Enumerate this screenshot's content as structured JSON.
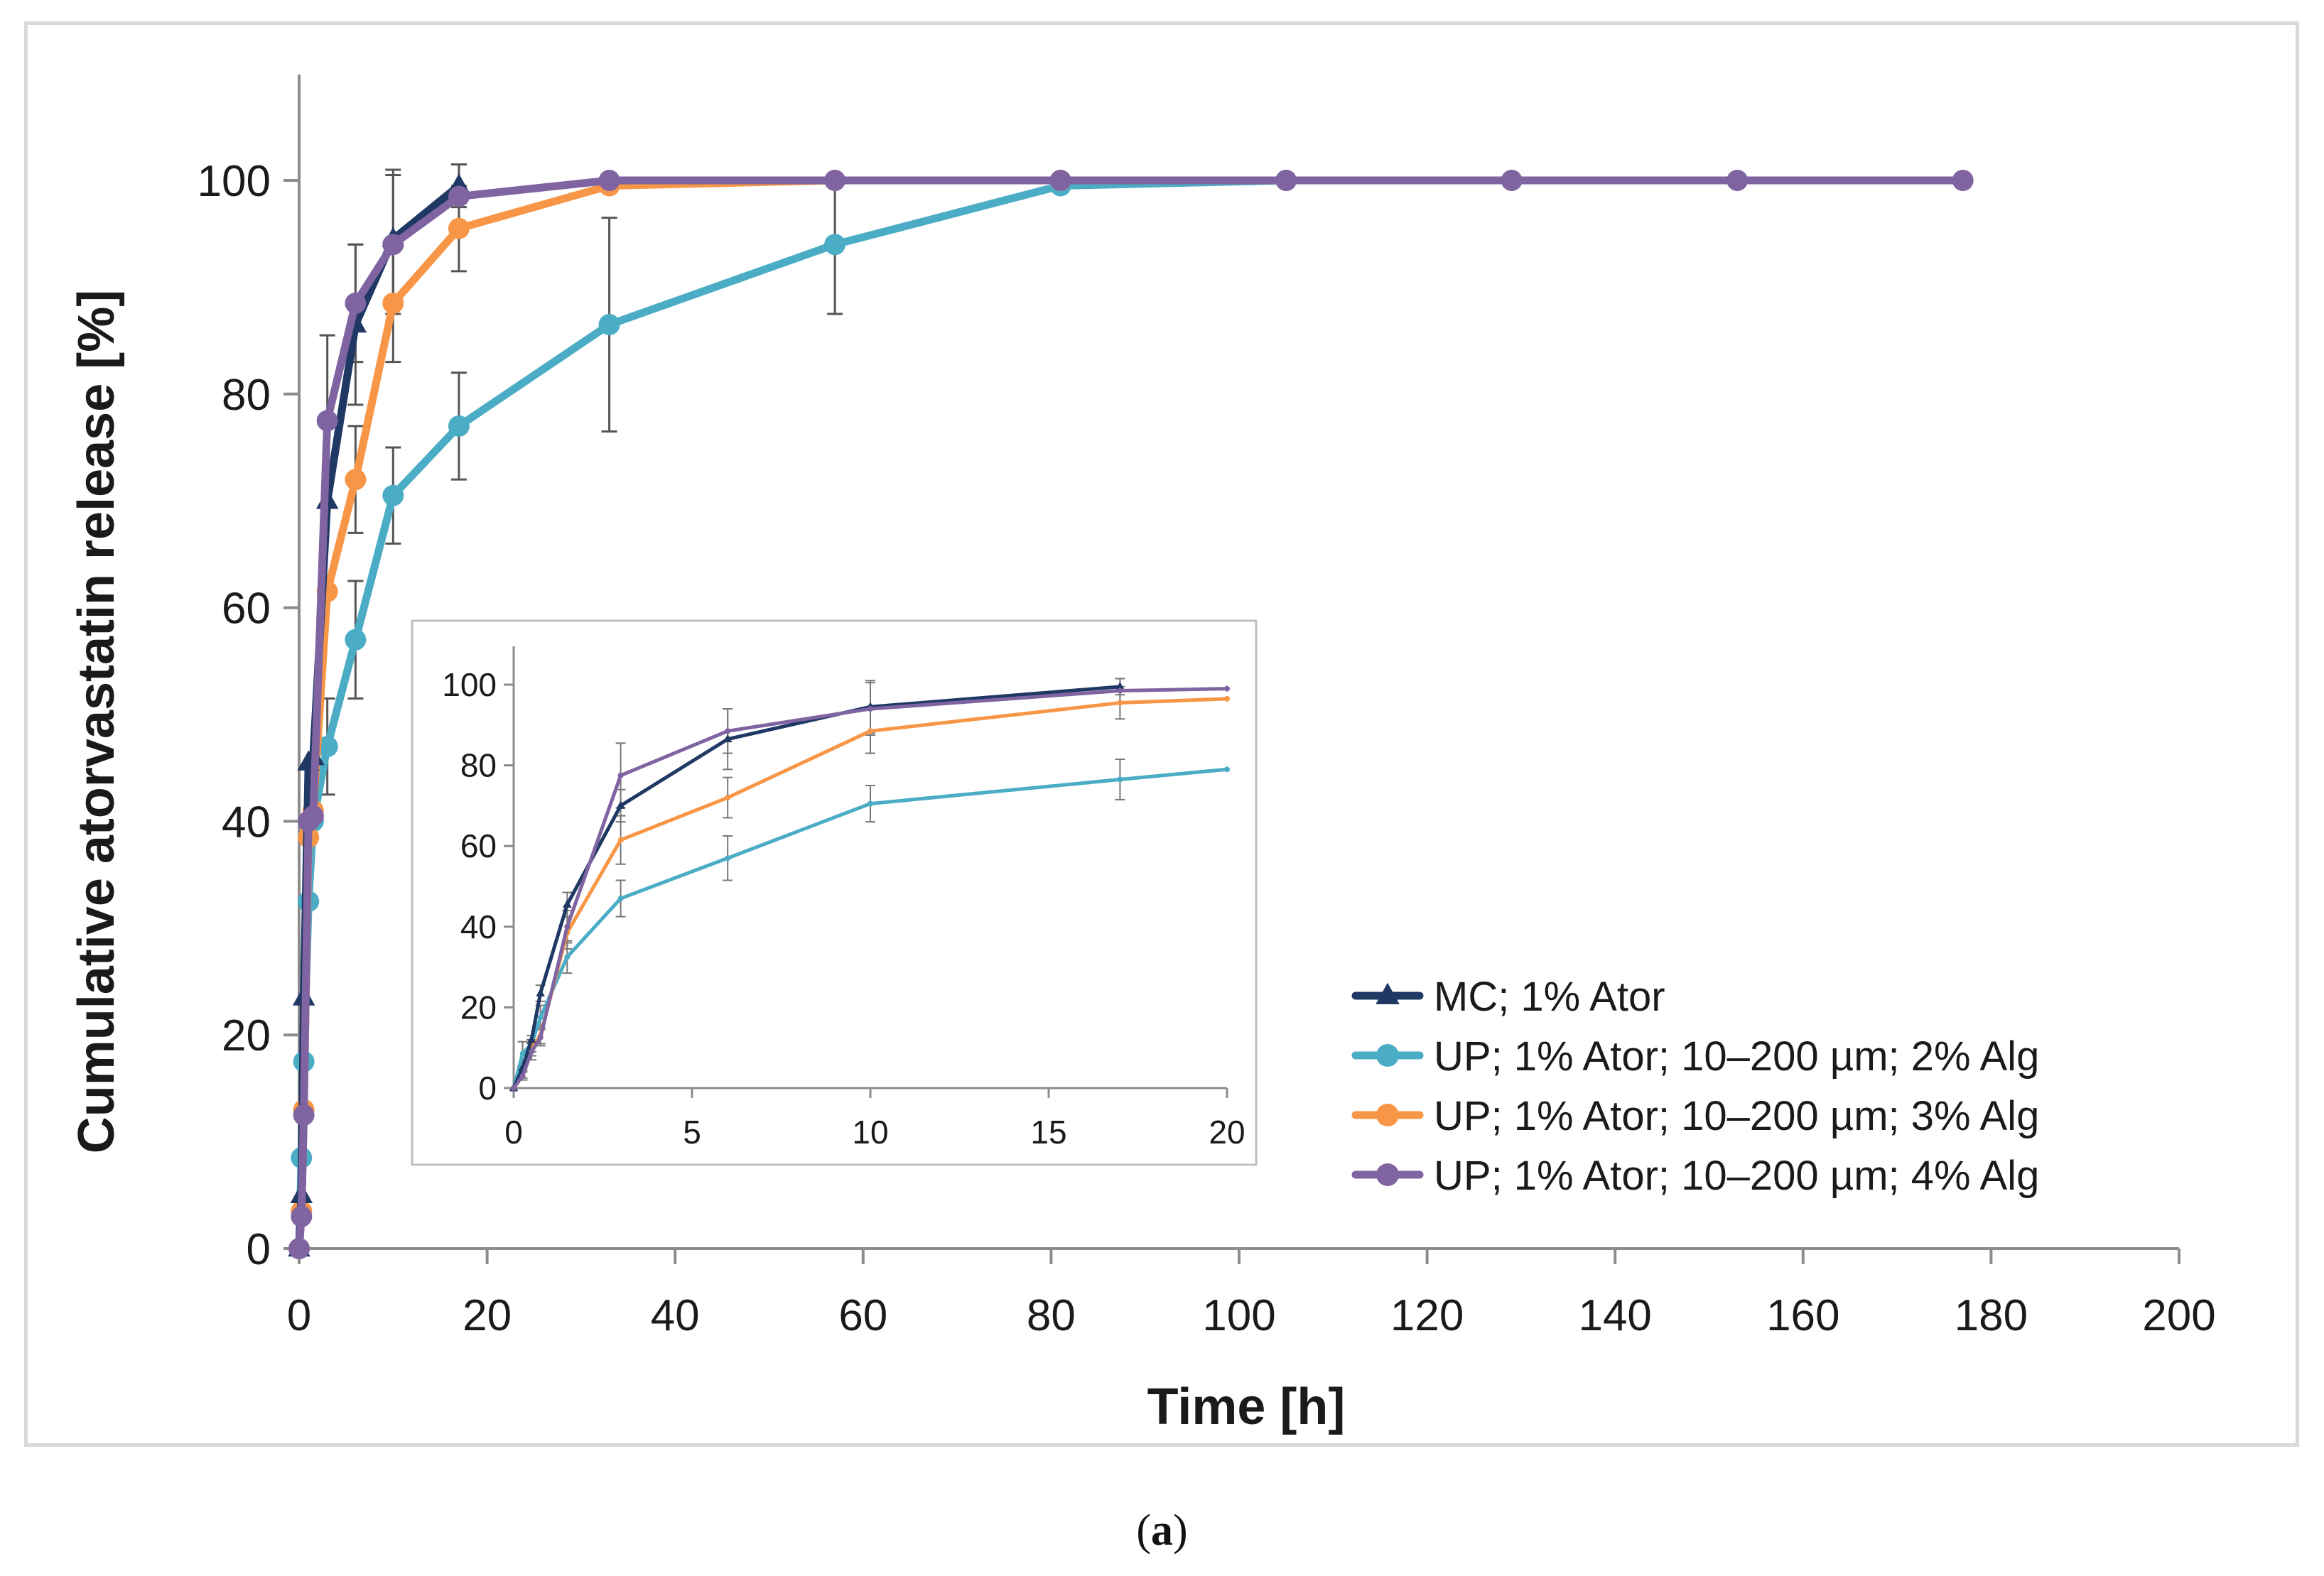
{
  "caption": {
    "open": "(",
    "letter": "a",
    "close": ")"
  },
  "chart_data": [
    {
      "type": "line",
      "role": "main",
      "xlabel": "Time [h]",
      "ylabel": "Cumulative atorvastatin release [%]",
      "xlim": [
        0,
        200
      ],
      "ylim": [
        0,
        100
      ],
      "xticks": [
        0,
        20,
        40,
        60,
        80,
        100,
        120,
        140,
        160,
        180,
        200
      ],
      "yticks": [
        0,
        20,
        40,
        60,
        80,
        100
      ],
      "grid": false,
      "legend_position": "bottom-right",
      "series": [
        {
          "name": "MC; 1% Ator",
          "color": "#1f3864",
          "marker": "triangle",
          "x": [
            0,
            0.25,
            0.5,
            1,
            1.5,
            3,
            6,
            10,
            17
          ],
          "y": [
            0,
            5,
            23.5,
            45.5,
            46,
            70,
            86.5,
            94.5,
            99.5
          ],
          "err": [
            0,
            0,
            0,
            0,
            0,
            0,
            7.5,
            6.5,
            2
          ]
        },
        {
          "name": "UP; 1% Ator; 10–200 µm; 2% Alg",
          "color": "#4bacc6",
          "marker": "circle",
          "x": [
            0,
            0.25,
            0.5,
            1,
            1.5,
            3,
            6,
            10,
            17,
            33,
            57,
            81,
            105
          ],
          "y": [
            0,
            8.5,
            17.5,
            32.5,
            40,
            47,
            57,
            70.5,
            77,
            86.5,
            94,
            99.5,
            100
          ],
          "err": [
            0,
            0,
            0,
            0,
            0,
            4.5,
            5.5,
            4.5,
            5,
            10,
            6.5,
            0,
            0
          ]
        },
        {
          "name": "UP; 1% Ator; 10–200 µm; 3% Alg",
          "color": "#f79646",
          "marker": "circle",
          "x": [
            0,
            0.25,
            0.5,
            1,
            1.5,
            3,
            6,
            10,
            17,
            33,
            57,
            81
          ],
          "y": [
            0,
            3.5,
            13,
            38.5,
            41,
            61.5,
            72,
            88.5,
            95.5,
            99.5,
            100,
            100
          ],
          "err": [
            0,
            0,
            0,
            0,
            0,
            0,
            5,
            5.5,
            4,
            0,
            0,
            0
          ]
        },
        {
          "name": "UP; 1% Ator; 10–200 µm; 4% Alg",
          "color": "#8064a2",
          "marker": "circle",
          "x": [
            0,
            0.25,
            0.5,
            1,
            1.5,
            3,
            6,
            10,
            17,
            33,
            57,
            81,
            105,
            129,
            153,
            177
          ],
          "y": [
            0,
            3,
            12.5,
            40,
            40.5,
            77.5,
            88.5,
            94,
            98.5,
            100,
            100,
            100,
            100,
            100,
            100,
            100
          ],
          "err": [
            0,
            0,
            0,
            0,
            0,
            8,
            5.5,
            6.5,
            3,
            0,
            0,
            0,
            0,
            0,
            0,
            0
          ]
        }
      ]
    },
    {
      "type": "line",
      "role": "inset",
      "xlim": [
        0,
        20
      ],
      "ylim": [
        0,
        100
      ],
      "xticks": [
        0,
        5,
        10,
        15,
        20
      ],
      "yticks": [
        0,
        20,
        40,
        60,
        80,
        100
      ],
      "grid": false,
      "series": [
        {
          "name": "MC; 1% Ator",
          "color": "#1f3864",
          "x": [
            0,
            0.25,
            0.5,
            0.75,
            1.5,
            3,
            6,
            10,
            17
          ],
          "y": [
            0,
            5,
            12,
            23.5,
            45.5,
            70,
            86.5,
            94.5,
            99.5
          ],
          "err": [
            0,
            0,
            0,
            2,
            3,
            4,
            7.5,
            6.5,
            2
          ]
        },
        {
          "name": "UP; 1% Ator; 10–200 µm; 2% Alg",
          "color": "#4bacc6",
          "x": [
            0,
            0.25,
            0.5,
            0.75,
            1.5,
            3,
            6,
            10,
            17,
            20
          ],
          "y": [
            0,
            8.5,
            11,
            17.5,
            32.5,
            47,
            57,
            70.5,
            76.5,
            79
          ],
          "err": [
            0,
            3,
            2,
            3,
            4,
            4.5,
            5.5,
            4.5,
            5,
            0
          ]
        },
        {
          "name": "UP; 1% Ator; 10–200 µm; 3% Alg",
          "color": "#f79646",
          "x": [
            0,
            0.25,
            0.5,
            0.75,
            1.5,
            3,
            6,
            10,
            17,
            20
          ],
          "y": [
            0,
            3.5,
            10,
            13,
            38.5,
            61.5,
            72,
            88.5,
            95.5,
            96.5
          ],
          "err": [
            0,
            1,
            2,
            2,
            4,
            6,
            5,
            5.5,
            4,
            0
          ]
        },
        {
          "name": "UP; 1% Ator; 10–200 µm; 4% Alg",
          "color": "#8064a2",
          "x": [
            0,
            0.25,
            0.5,
            0.75,
            1.5,
            3,
            6,
            10,
            17,
            20
          ],
          "y": [
            0,
            3,
            9,
            12.5,
            40,
            77.5,
            88.5,
            94,
            98.5,
            99
          ],
          "err": [
            0,
            1,
            2,
            2,
            4,
            8,
            5.5,
            6.5,
            3,
            0
          ]
        }
      ]
    }
  ]
}
